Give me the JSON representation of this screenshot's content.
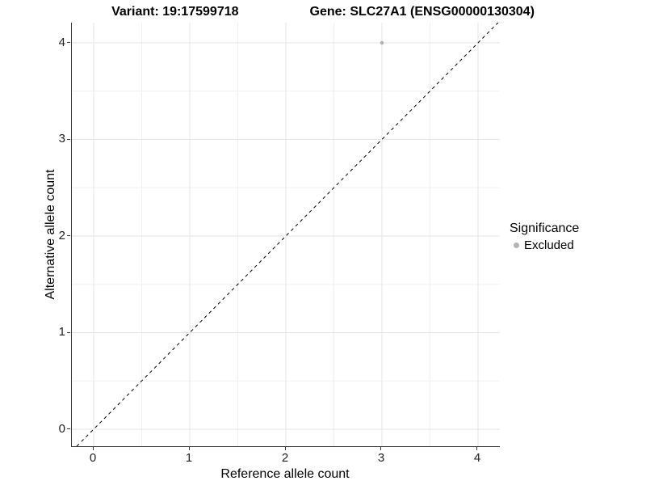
{
  "title": {
    "left": "Variant: 19:17599718",
    "right": "Gene: SLC27A1 (ENSG00000130304)"
  },
  "chart_data": {
    "type": "scatter",
    "title_left": "Variant: 19:17599718",
    "title_right": "Gene: SLC27A1 (ENSG00000130304)",
    "xlabel": "Reference allele count",
    "ylabel": "Alternative allele count",
    "xlim": [
      -0.227,
      4.227
    ],
    "ylim": [
      -0.176,
      4.209
    ],
    "x_ticks": [
      0,
      1,
      2,
      3,
      4
    ],
    "y_ticks": [
      0,
      1,
      2,
      3,
      4
    ],
    "minor_grid_step": 0.5,
    "grid": true,
    "points": [
      {
        "x": 3,
        "y": 4,
        "series": "Excluded"
      }
    ],
    "reference_line": {
      "type": "abline",
      "slope": 1,
      "intercept": 0,
      "style": "dashed",
      "color": "#000000"
    },
    "legend": {
      "title": "Significance",
      "position": "right",
      "entries": [
        {
          "label": "Excluded",
          "color": "#b4b4b4",
          "marker": "circle"
        }
      ]
    },
    "colors": {
      "point_excluded": "#b4b4b4",
      "grid_major": "#e5e5e5",
      "grid_minor": "#f0f0f0",
      "axis_line": "#3a3a3a",
      "tick_text": "#1f1f1f",
      "title_text": "#000000"
    }
  }
}
